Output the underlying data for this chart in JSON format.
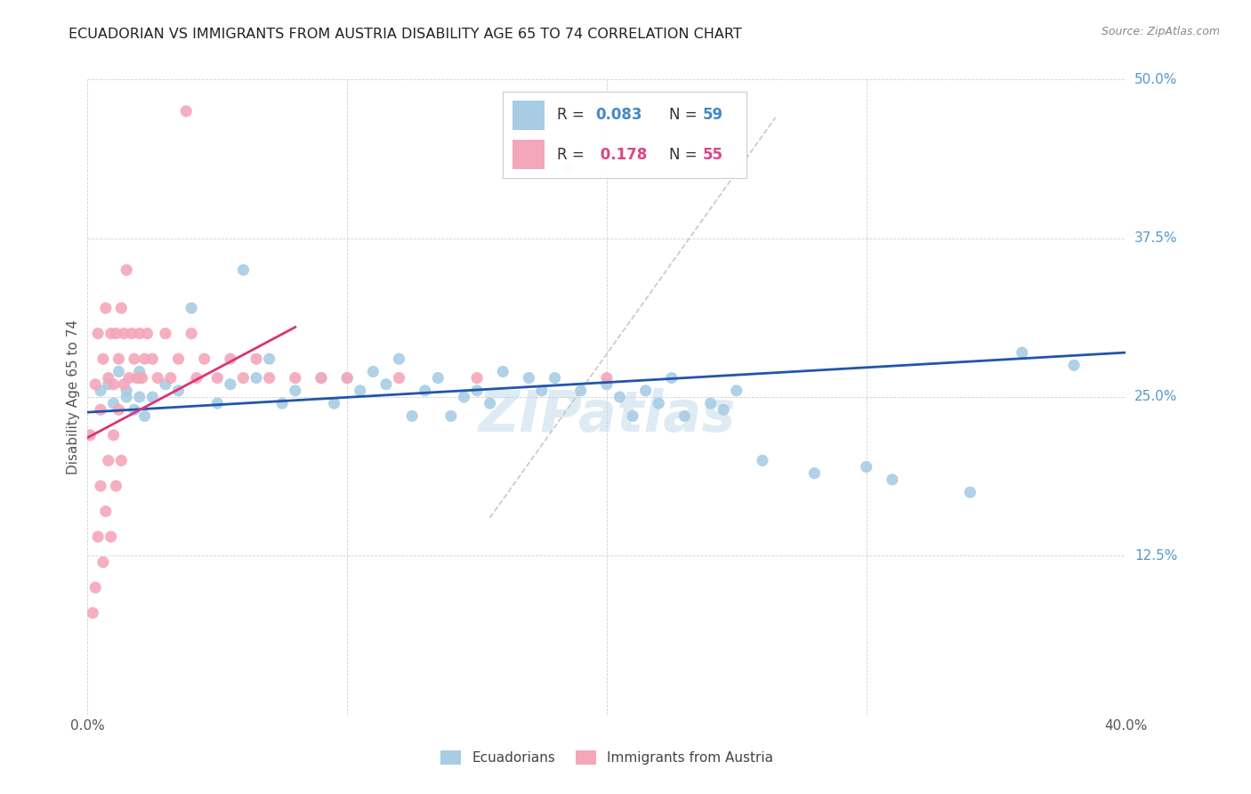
{
  "title": "ECUADORIAN VS IMMIGRANTS FROM AUSTRIA DISABILITY AGE 65 TO 74 CORRELATION CHART",
  "source": "Source: ZipAtlas.com",
  "ylabel": "Disability Age 65 to 74",
  "xlim": [
    0.0,
    0.4
  ],
  "ylim": [
    0.0,
    0.5
  ],
  "xticks": [
    0.0,
    0.1,
    0.2,
    0.3,
    0.4
  ],
  "yticks": [
    0.0,
    0.125,
    0.25,
    0.375,
    0.5
  ],
  "legend1_R": "0.083",
  "legend1_N": "59",
  "legend2_R": "0.178",
  "legend2_N": "55",
  "blue_color": "#a8cce4",
  "pink_color": "#f4a7b9",
  "blue_line_color": "#2255aa",
  "pink_line_color": "#dd3377",
  "ref_line_color": "#bbbbbb",
  "ecuadorians_x": [
    0.005,
    0.008,
    0.01,
    0.012,
    0.015,
    0.015,
    0.018,
    0.02,
    0.02,
    0.02,
    0.022,
    0.025,
    0.03,
    0.035,
    0.04,
    0.05,
    0.055,
    0.06,
    0.065,
    0.07,
    0.075,
    0.08,
    0.09,
    0.095,
    0.1,
    0.105,
    0.11,
    0.115,
    0.12,
    0.125,
    0.13,
    0.135,
    0.14,
    0.145,
    0.15,
    0.155,
    0.16,
    0.17,
    0.175,
    0.18,
    0.185,
    0.19,
    0.2,
    0.205,
    0.21,
    0.215,
    0.22,
    0.225,
    0.23,
    0.24,
    0.245,
    0.25,
    0.26,
    0.28,
    0.3,
    0.31,
    0.34,
    0.36,
    0.38
  ],
  "ecuadorians_y": [
    0.255,
    0.26,
    0.245,
    0.27,
    0.25,
    0.255,
    0.24,
    0.25,
    0.265,
    0.27,
    0.235,
    0.25,
    0.26,
    0.255,
    0.32,
    0.245,
    0.26,
    0.35,
    0.265,
    0.28,
    0.245,
    0.255,
    0.265,
    0.245,
    0.265,
    0.255,
    0.27,
    0.26,
    0.28,
    0.235,
    0.255,
    0.265,
    0.235,
    0.25,
    0.255,
    0.245,
    0.27,
    0.265,
    0.255,
    0.265,
    0.43,
    0.255,
    0.26,
    0.25,
    0.235,
    0.255,
    0.245,
    0.265,
    0.235,
    0.245,
    0.24,
    0.255,
    0.2,
    0.19,
    0.195,
    0.185,
    0.175,
    0.285,
    0.275
  ],
  "austria_x": [
    0.001,
    0.002,
    0.003,
    0.003,
    0.004,
    0.004,
    0.005,
    0.005,
    0.006,
    0.006,
    0.007,
    0.007,
    0.008,
    0.008,
    0.009,
    0.009,
    0.01,
    0.01,
    0.011,
    0.011,
    0.012,
    0.012,
    0.013,
    0.013,
    0.014,
    0.014,
    0.015,
    0.016,
    0.017,
    0.018,
    0.019,
    0.02,
    0.021,
    0.022,
    0.023,
    0.025,
    0.027,
    0.03,
    0.032,
    0.035,
    0.038,
    0.04,
    0.042,
    0.045,
    0.05,
    0.055,
    0.06,
    0.065,
    0.07,
    0.08,
    0.09,
    0.1,
    0.12,
    0.15,
    0.2
  ],
  "austria_y": [
    0.22,
    0.08,
    0.26,
    0.1,
    0.3,
    0.14,
    0.24,
    0.18,
    0.28,
    0.12,
    0.32,
    0.16,
    0.265,
    0.2,
    0.3,
    0.14,
    0.26,
    0.22,
    0.3,
    0.18,
    0.28,
    0.24,
    0.32,
    0.2,
    0.26,
    0.3,
    0.35,
    0.265,
    0.3,
    0.28,
    0.265,
    0.3,
    0.265,
    0.28,
    0.3,
    0.28,
    0.265,
    0.3,
    0.265,
    0.28,
    0.475,
    0.3,
    0.265,
    0.28,
    0.265,
    0.28,
    0.265,
    0.28,
    0.265,
    0.265,
    0.265,
    0.265,
    0.265,
    0.265,
    0.265
  ],
  "ref_line_x": [
    0.155,
    0.265
  ],
  "ref_line_y": [
    0.155,
    0.47
  ]
}
